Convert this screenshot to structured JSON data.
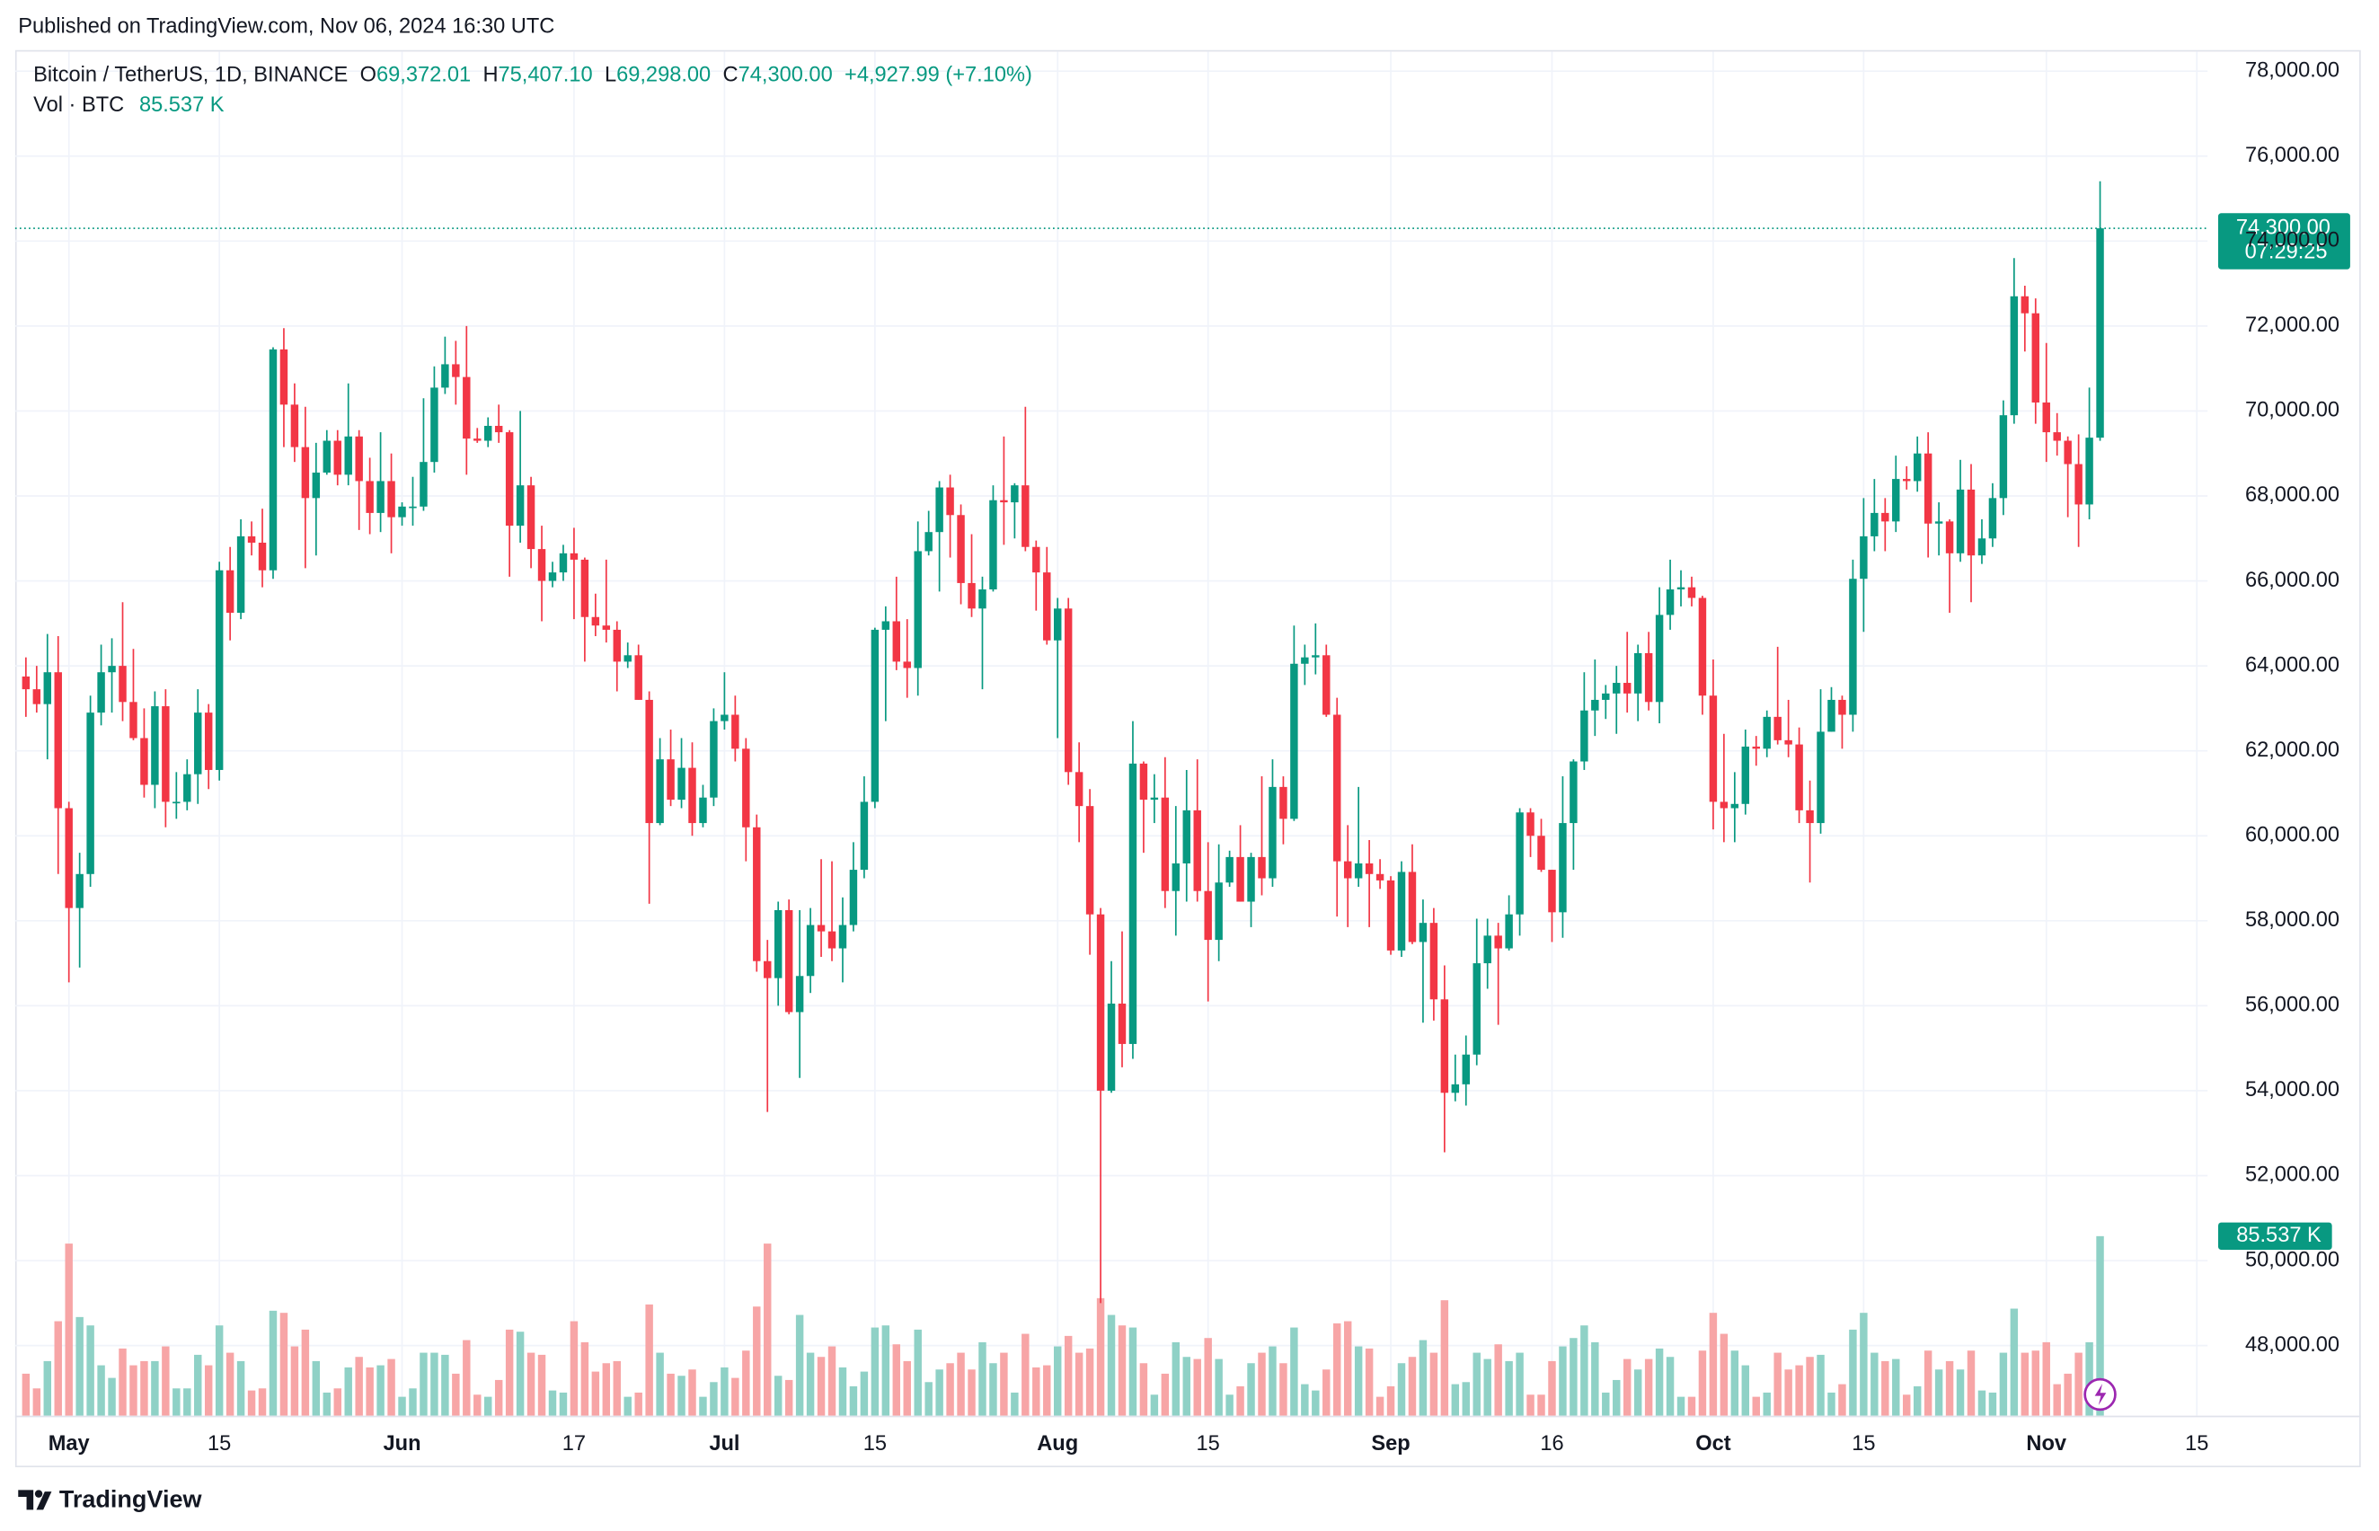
{
  "published": "Published on TradingView.com, Nov 06, 2024 16:30 UTC",
  "brand": "TradingView",
  "chart_data": {
    "type": "candlestick",
    "title": "Bitcoin / TetherUS, 1D, BINANCE",
    "ohlc_legend": {
      "labels": [
        "O",
        "H",
        "L",
        "C"
      ],
      "values": [
        "69,372.01",
        "75,407.10",
        "69,298.00",
        "74,300.00"
      ],
      "change": "+4,927.99 (+7.10%)"
    },
    "volume_legend": {
      "label": "Vol · BTC",
      "value": "85.537 K"
    },
    "countdown": "07:29:25",
    "up_color": "#089981",
    "down_color": "#f23645",
    "volume_up_color": "#8fd1c6",
    "volume_down_color": "#f7a5a6",
    "grid": true,
    "xlim": [
      "2024-04-26",
      "2024-11-16"
    ],
    "xticks": [
      {
        "value": "2024-05-01",
        "label": "May"
      },
      {
        "value": "2024-05-15",
        "label": "15"
      },
      {
        "value": "2024-06-01",
        "label": "Jun"
      },
      {
        "value": "2024-06-17",
        "label": "17"
      },
      {
        "value": "2024-07-01",
        "label": "Jul"
      },
      {
        "value": "2024-07-15",
        "label": "15"
      },
      {
        "value": "2024-08-01",
        "label": "Aug"
      },
      {
        "value": "2024-08-15",
        "label": "15"
      },
      {
        "value": "2024-09-01",
        "label": "Sep"
      },
      {
        "value": "2024-09-16",
        "label": "16"
      },
      {
        "value": "2024-10-01",
        "label": "Oct"
      },
      {
        "value": "2024-10-15",
        "label": "15"
      },
      {
        "value": "2024-11-01",
        "label": "Nov"
      },
      {
        "value": "2024-11-15",
        "label": "15"
      }
    ],
    "ylim": [
      46350,
      78460
    ],
    "yticks": [
      {
        "value": 48000,
        "label": "48,000.00"
      },
      {
        "value": 50000,
        "label": "50,000.00"
      },
      {
        "value": 52000,
        "label": "52,000.00"
      },
      {
        "value": 54000,
        "label": "54,000.00"
      },
      {
        "value": 56000,
        "label": "56,000.00"
      },
      {
        "value": 58000,
        "label": "58,000.00"
      },
      {
        "value": 60000,
        "label": "60,000.00"
      },
      {
        "value": 62000,
        "label": "62,000.00"
      },
      {
        "value": 64000,
        "label": "64,000.00"
      },
      {
        "value": 66000,
        "label": "66,000.00"
      },
      {
        "value": 68000,
        "label": "68,000.00"
      },
      {
        "value": 70000,
        "label": "70,000.00"
      },
      {
        "value": 72000,
        "label": "72,000.00"
      },
      {
        "value": 74000,
        "label": "74,000.00"
      },
      {
        "value": 76000,
        "label": "76,000.00"
      },
      {
        "value": 78000,
        "label": "78,000.00"
      }
    ],
    "vlim": [
      0,
      650
    ],
    "x": [
      "2024-04-27",
      "2024-04-28",
      "2024-04-29",
      "2024-04-30",
      "2024-05-01",
      "2024-05-02",
      "2024-05-03",
      "2024-05-04",
      "2024-05-05",
      "2024-05-06",
      "2024-05-07",
      "2024-05-08",
      "2024-05-09",
      "2024-05-10",
      "2024-05-11",
      "2024-05-12",
      "2024-05-13",
      "2024-05-14",
      "2024-05-15",
      "2024-05-16",
      "2024-05-17",
      "2024-05-18",
      "2024-05-19",
      "2024-05-20",
      "2024-05-21",
      "2024-05-22",
      "2024-05-23",
      "2024-05-24",
      "2024-05-25",
      "2024-05-26",
      "2024-05-27",
      "2024-05-28",
      "2024-05-29",
      "2024-05-30",
      "2024-05-31",
      "2024-06-01",
      "2024-06-02",
      "2024-06-03",
      "2024-06-04",
      "2024-06-05",
      "2024-06-06",
      "2024-06-07",
      "2024-06-08",
      "2024-06-09",
      "2024-06-10",
      "2024-06-11",
      "2024-06-12",
      "2024-06-13",
      "2024-06-14",
      "2024-06-15",
      "2024-06-16",
      "2024-06-17",
      "2024-06-18",
      "2024-06-19",
      "2024-06-20",
      "2024-06-21",
      "2024-06-22",
      "2024-06-23",
      "2024-06-24",
      "2024-06-25",
      "2024-06-26",
      "2024-06-27",
      "2024-06-28",
      "2024-06-29",
      "2024-06-30",
      "2024-07-01",
      "2024-07-02",
      "2024-07-03",
      "2024-07-04",
      "2024-07-05",
      "2024-07-06",
      "2024-07-07",
      "2024-07-08",
      "2024-07-09",
      "2024-07-10",
      "2024-07-11",
      "2024-07-12",
      "2024-07-13",
      "2024-07-14",
      "2024-07-15",
      "2024-07-16",
      "2024-07-17",
      "2024-07-18",
      "2024-07-19",
      "2024-07-20",
      "2024-07-21",
      "2024-07-22",
      "2024-07-23",
      "2024-07-24",
      "2024-07-25",
      "2024-07-26",
      "2024-07-27",
      "2024-07-28",
      "2024-07-29",
      "2024-07-30",
      "2024-07-31",
      "2024-08-01",
      "2024-08-02",
      "2024-08-03",
      "2024-08-04",
      "2024-08-05",
      "2024-08-06",
      "2024-08-07",
      "2024-08-08",
      "2024-08-09",
      "2024-08-10",
      "2024-08-11",
      "2024-08-12",
      "2024-08-13",
      "2024-08-14",
      "2024-08-15",
      "2024-08-16",
      "2024-08-17",
      "2024-08-18",
      "2024-08-19",
      "2024-08-20",
      "2024-08-21",
      "2024-08-22",
      "2024-08-23",
      "2024-08-24",
      "2024-08-25",
      "2024-08-26",
      "2024-08-27",
      "2024-08-28",
      "2024-08-29",
      "2024-08-30",
      "2024-08-31",
      "2024-09-01",
      "2024-09-02",
      "2024-09-03",
      "2024-09-04",
      "2024-09-05",
      "2024-09-06",
      "2024-09-07",
      "2024-09-08",
      "2024-09-09",
      "2024-09-10",
      "2024-09-11",
      "2024-09-12",
      "2024-09-13",
      "2024-09-14",
      "2024-09-15",
      "2024-09-16",
      "2024-09-17",
      "2024-09-18",
      "2024-09-19",
      "2024-09-20",
      "2024-09-21",
      "2024-09-22",
      "2024-09-23",
      "2024-09-24",
      "2024-09-25",
      "2024-09-26",
      "2024-09-27",
      "2024-09-28",
      "2024-09-29",
      "2024-09-30",
      "2024-10-01",
      "2024-10-02",
      "2024-10-03",
      "2024-10-04",
      "2024-10-05",
      "2024-10-06",
      "2024-10-07",
      "2024-10-08",
      "2024-10-09",
      "2024-10-10",
      "2024-10-11",
      "2024-10-12",
      "2024-10-13",
      "2024-10-14",
      "2024-10-15",
      "2024-10-16",
      "2024-10-17",
      "2024-10-18",
      "2024-10-19",
      "2024-10-20",
      "2024-10-21",
      "2024-10-22",
      "2024-10-23",
      "2024-10-24",
      "2024-10-25",
      "2024-10-26",
      "2024-10-27",
      "2024-10-28",
      "2024-10-29",
      "2024-10-30",
      "2024-10-31",
      "2024-11-01",
      "2024-11-02",
      "2024-11-03",
      "2024-11-04",
      "2024-11-05",
      "2024-11-06"
    ],
    "open": [
      63750,
      63450,
      63100,
      63850,
      60650,
      58300,
      59100,
      62900,
      63850,
      64000,
      63150,
      62300,
      61200,
      63050,
      60800,
      60800,
      61450,
      62900,
      61550,
      66250,
      65250,
      67050,
      66900,
      66250,
      71450,
      70150,
      69150,
      67950,
      68550,
      69300,
      68500,
      69400,
      68350,
      67600,
      68350,
      67500,
      67750,
      67750,
      68800,
      70550,
      71100,
      70800,
      69350,
      69300,
      69650,
      69500,
      67300,
      68250,
      66750,
      66000,
      66200,
      66650,
      66500,
      65150,
      64950,
      64850,
      64100,
      64250,
      63200,
      60300,
      61800,
      60850,
      61600,
      60300,
      60900,
      62700,
      62850,
      62050,
      60200,
      57050,
      56650,
      58250,
      55850,
      56700,
      57900,
      57750,
      57350,
      57900,
      59200,
      60800,
      64850,
      65050,
      64100,
      63950,
      66700,
      67150,
      68200,
      67550,
      65950,
      65350,
      65800,
      67900,
      67850,
      68250,
      66800,
      66200,
      64600,
      65350,
      61500,
      60700,
      58150,
      54000,
      56050,
      55100,
      61700,
      60850,
      60900,
      58700,
      59350,
      60600,
      58700,
      57550,
      58900,
      59500,
      58450,
      59500,
      59000,
      61150,
      60400,
      64050,
      64200,
      64250,
      62850,
      59400,
      59000,
      59350,
      59100,
      58950,
      57300,
      59150,
      57500,
      57950,
      56150,
      53950,
      54150,
      54850,
      57000,
      57650,
      57350,
      58150,
      60550,
      60000,
      59200,
      58200,
      60300,
      61750,
      62950,
      63200,
      63350,
      63600,
      63350,
      64300,
      63150,
      65200,
      65800,
      65850,
      65600,
      63300,
      60800,
      60650,
      60750,
      62100,
      62050,
      62800,
      62250,
      62150,
      60600,
      60300,
      62450,
      63200,
      62850,
      66050,
      67050,
      67600,
      67400,
      68400,
      68350,
      69000,
      67350,
      67400,
      66650,
      68150,
      66600,
      67000,
      67950,
      69900,
      72700,
      72300,
      70200,
      69500,
      69300,
      68750,
      67800,
      69372.01
    ],
    "high": [
      64200,
      64000,
      64750,
      64700,
      60800,
      59600,
      63300,
      64500,
      64650,
      65500,
      64400,
      63000,
      63400,
      63450,
      61500,
      61800,
      63450,
      63100,
      66450,
      66800,
      67450,
      67400,
      67700,
      71500,
      71950,
      70650,
      70100,
      69250,
      69550,
      69550,
      70650,
      69550,
      68900,
      69500,
      69000,
      67850,
      68450,
      70300,
      71050,
      71750,
      71650,
      72000,
      69600,
      69850,
      70150,
      69550,
      70000,
      68450,
      67300,
      66450,
      66850,
      67250,
      66550,
      65700,
      66500,
      65050,
      64550,
      64500,
      63400,
      62300,
      62500,
      62300,
      62200,
      61200,
      63000,
      63850,
      63300,
      62300,
      60500,
      57550,
      58450,
      58500,
      58250,
      58300,
      59450,
      59400,
      58550,
      59850,
      61400,
      64900,
      65400,
      66100,
      65100,
      67400,
      67650,
      68350,
      68500,
      67800,
      67100,
      66100,
      68250,
      69400,
      68300,
      70100,
      66950,
      66800,
      65600,
      65600,
      62200,
      61100,
      58300,
      57050,
      57750,
      62700,
      61750,
      61450,
      61850,
      60700,
      61550,
      61800,
      59850,
      59800,
      59650,
      60250,
      59600,
      61400,
      61800,
      61400,
      64950,
      64500,
      65000,
      64500,
      63250,
      60250,
      61150,
      59900,
      59450,
      59050,
      59400,
      59800,
      58500,
      58300,
      56950,
      54850,
      55300,
      58050,
      58050,
      57950,
      58600,
      60650,
      60650,
      60400,
      59200,
      61400,
      61800,
      63850,
      64150,
      63550,
      64000,
      64800,
      64500,
      64800,
      65850,
      66500,
      66250,
      66100,
      65650,
      64150,
      62400,
      61500,
      62500,
      62350,
      62950,
      64450,
      63200,
      62550,
      61300,
      63450,
      63500,
      63300,
      66500,
      67950,
      68400,
      67950,
      68950,
      68700,
      69400,
      69500,
      67850,
      67450,
      68850,
      68750,
      67450,
      68300,
      70250,
      73600,
      72950,
      72650,
      71600,
      69950,
      69400,
      69450,
      70550,
      75407.1
    ],
    "low": [
      62800,
      62900,
      61800,
      59100,
      56550,
      56900,
      58800,
      62600,
      62900,
      62700,
      62250,
      60900,
      60650,
      60200,
      60400,
      60600,
      60750,
      61100,
      61300,
      64600,
      65100,
      66600,
      65850,
      66050,
      69150,
      68800,
      66300,
      66600,
      68500,
      68250,
      68250,
      67200,
      67100,
      67150,
      66650,
      67300,
      67300,
      67650,
      68550,
      70400,
      70150,
      68500,
      69250,
      69150,
      69250,
      66100,
      66900,
      66300,
      65050,
      65850,
      66000,
      65100,
      64100,
      64700,
      64550,
      63400,
      63950,
      63200,
      58400,
      60250,
      60700,
      60650,
      60000,
      60200,
      60700,
      62500,
      61750,
      59400,
      56800,
      53500,
      56000,
      55800,
      54300,
      56300,
      57150,
      57050,
      56550,
      57750,
      59000,
      60650,
      62700,
      63900,
      63250,
      63300,
      66600,
      65750,
      66550,
      65450,
      65150,
      63450,
      65750,
      66850,
      67000,
      66700,
      65300,
      64500,
      62300,
      61200,
      59850,
      57200,
      49000,
      53950,
      54550,
      54750,
      59600,
      60300,
      58300,
      57650,
      58450,
      58450,
      56100,
      57050,
      58800,
      58450,
      57850,
      58600,
      58800,
      59800,
      60350,
      63550,
      63800,
      62800,
      58100,
      57850,
      58800,
      57850,
      58750,
      57200,
      57150,
      57450,
      55600,
      55650,
      52550,
      53750,
      53650,
      54600,
      56400,
      55550,
      57300,
      57650,
      59500,
      59150,
      57500,
      57600,
      59200,
      61550,
      62350,
      62750,
      62400,
      62900,
      62700,
      62950,
      62650,
      64850,
      65400,
      65400,
      62850,
      60150,
      59850,
      59850,
      60500,
      61650,
      61850,
      62150,
      61850,
      60300,
      58900,
      60050,
      62450,
      62050,
      62450,
      64800,
      66700,
      66700,
      67150,
      68150,
      68100,
      66550,
      66600,
      65250,
      66450,
      65500,
      66400,
      66800,
      67550,
      69700,
      71400,
      69700,
      68800,
      68950,
      67500,
      66800,
      67450,
      69298
    ],
    "close": [
      63450,
      63100,
      63850,
      60650,
      58300,
      59100,
      62900,
      63850,
      64000,
      63150,
      62300,
      61200,
      63050,
      60800,
      60800,
      61450,
      62900,
      61550,
      66250,
      65250,
      67050,
      66900,
      66250,
      71450,
      70150,
      69150,
      67950,
      68550,
      69300,
      68500,
      69400,
      68350,
      67600,
      68350,
      67500,
      67750,
      67750,
      68800,
      70550,
      71100,
      70800,
      69350,
      69300,
      69650,
      69500,
      67300,
      68250,
      66750,
      66000,
      66200,
      66650,
      66500,
      65150,
      64950,
      64850,
      64100,
      64250,
      63200,
      60300,
      61800,
      60850,
      61600,
      60300,
      60900,
      62700,
      62850,
      62050,
      60200,
      57050,
      56650,
      58250,
      55850,
      56700,
      57900,
      57750,
      57350,
      57900,
      59200,
      60800,
      64850,
      65050,
      64100,
      63950,
      66700,
      67150,
      68200,
      67550,
      65950,
      65350,
      65800,
      67900,
      67850,
      68250,
      66800,
      66200,
      64600,
      65350,
      61500,
      60700,
      58150,
      54000,
      56050,
      55100,
      61700,
      60850,
      60900,
      58700,
      59350,
      60600,
      58700,
      57550,
      58900,
      59500,
      58450,
      59500,
      59000,
      61150,
      60400,
      64050,
      64200,
      64250,
      62850,
      59400,
      59000,
      59350,
      59100,
      58950,
      57300,
      59150,
      57500,
      57950,
      56150,
      53950,
      54150,
      54850,
      57000,
      57650,
      57350,
      58150,
      60550,
      60000,
      59200,
      58200,
      60300,
      61750,
      62950,
      63200,
      63350,
      63600,
      63350,
      64300,
      63150,
      65200,
      65800,
      65850,
      65600,
      63300,
      60800,
      60650,
      60750,
      62100,
      62050,
      62800,
      62250,
      62150,
      60600,
      60300,
      62450,
      63200,
      62850,
      66050,
      67050,
      67600,
      67400,
      68400,
      68350,
      69000,
      67350,
      67400,
      66650,
      68150,
      66600,
      67000,
      67950,
      69900,
      72700,
      72300,
      70200,
      69500,
      69300,
      68750,
      67800,
      69372.01,
      74300
    ],
    "volume": [
      20,
      13,
      26,
      45,
      82,
      47,
      43,
      24,
      18,
      32,
      24,
      26,
      26,
      33,
      13,
      13,
      29,
      24,
      43,
      30,
      26,
      12,
      13,
      50,
      49,
      33,
      41,
      26,
      11,
      13,
      23,
      28,
      23,
      24,
      27,
      9,
      13,
      30,
      30,
      29,
      20,
      36,
      10,
      9,
      17,
      41,
      40,
      30,
      29,
      12,
      11,
      45,
      35,
      21,
      25,
      26,
      9,
      11,
      53,
      30,
      20,
      19,
      22,
      9,
      16,
      23,
      18,
      31,
      52,
      82,
      19,
      17,
      48,
      30,
      28,
      33,
      23,
      14,
      21,
      42,
      43,
      34,
      26,
      41,
      16,
      22,
      25,
      30,
      22,
      35,
      25,
      30,
      11,
      39,
      23,
      24,
      33,
      38,
      30,
      32,
      56,
      48,
      43,
      42,
      25,
      10,
      20,
      35,
      28,
      27,
      37,
      27,
      10,
      14,
      25,
      30,
      33,
      25,
      42,
      15,
      12,
      22,
      44,
      45,
      33,
      32,
      9,
      14,
      25,
      28,
      36,
      30,
      55,
      15,
      16,
      30,
      27,
      34,
      26,
      30,
      10,
      10,
      26,
      33,
      37,
      43,
      35,
      11,
      17,
      27,
      22,
      27,
      32,
      28,
      9,
      9,
      31,
      49,
      39,
      31,
      24,
      9,
      11,
      30,
      22,
      24,
      28,
      29,
      11,
      15,
      41,
      49,
      30,
      26,
      27,
      10,
      14,
      31,
      22,
      26,
      22,
      31,
      12,
      11,
      30,
      51,
      30,
      31,
      35,
      15,
      20,
      30,
      35,
      85.537
    ]
  }
}
